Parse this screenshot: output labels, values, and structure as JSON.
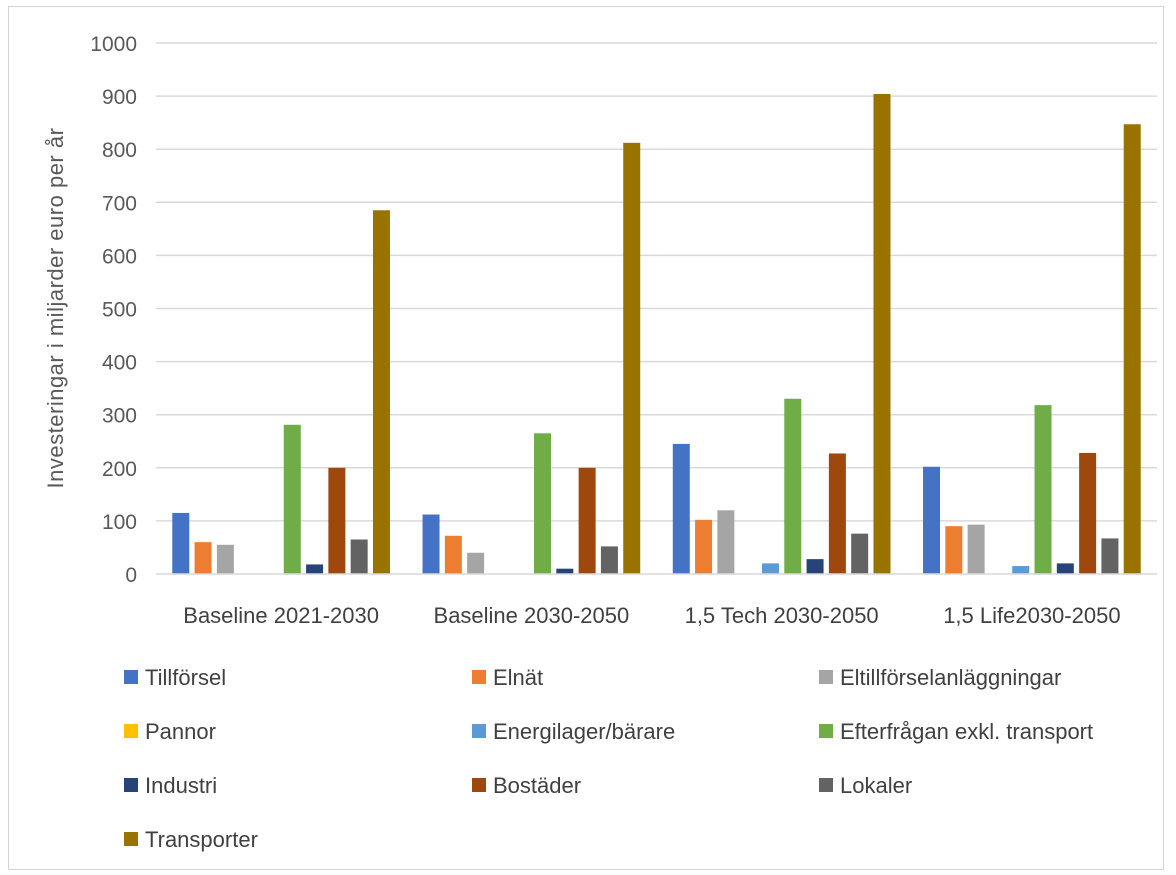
{
  "chart_data": {
    "type": "bar",
    "title": "",
    "xlabel": "",
    "ylabel": "Investeringar i miljarder euro per år",
    "ylim": [
      0,
      1000
    ],
    "yticks": [
      0,
      100,
      200,
      300,
      400,
      500,
      600,
      700,
      800,
      900,
      1000
    ],
    "grid": true,
    "legend_position": "bottom",
    "categories": [
      "Baseline 2021-2030",
      "Baseline 2030-2050",
      "1,5 Tech 2030-2050",
      "1,5 Life2030-2050"
    ],
    "series": [
      {
        "name": "Tillförsel",
        "color": "#4472C4",
        "values": [
          115,
          112,
          245,
          202
        ]
      },
      {
        "name": "Elnät",
        "color": "#ED7D31",
        "values": [
          60,
          72,
          102,
          90
        ]
      },
      {
        "name": "Eltillförselanläggningar",
        "color": "#A5A5A5",
        "values": [
          55,
          40,
          120,
          93
        ]
      },
      {
        "name": "Pannor",
        "color": "#FFC000",
        "values": [
          0,
          0,
          0,
          0
        ]
      },
      {
        "name": "Energilager/bärare",
        "color": "#5B9BD5",
        "values": [
          0,
          0,
          20,
          15
        ]
      },
      {
        "name": "Efterfrågan exkl. transport",
        "color": "#70AD47",
        "values": [
          281,
          265,
          330,
          318
        ]
      },
      {
        "name": "Industri",
        "color": "#264478",
        "values": [
          18,
          10,
          28,
          20
        ]
      },
      {
        "name": "Bostäder",
        "color": "#9E480E",
        "values": [
          200,
          200,
          227,
          228
        ]
      },
      {
        "name": "Lokaler",
        "color": "#636363",
        "values": [
          65,
          52,
          76,
          67
        ]
      },
      {
        "name": "Transporter",
        "color": "#997300",
        "values": [
          685,
          812,
          904,
          847
        ]
      }
    ]
  }
}
